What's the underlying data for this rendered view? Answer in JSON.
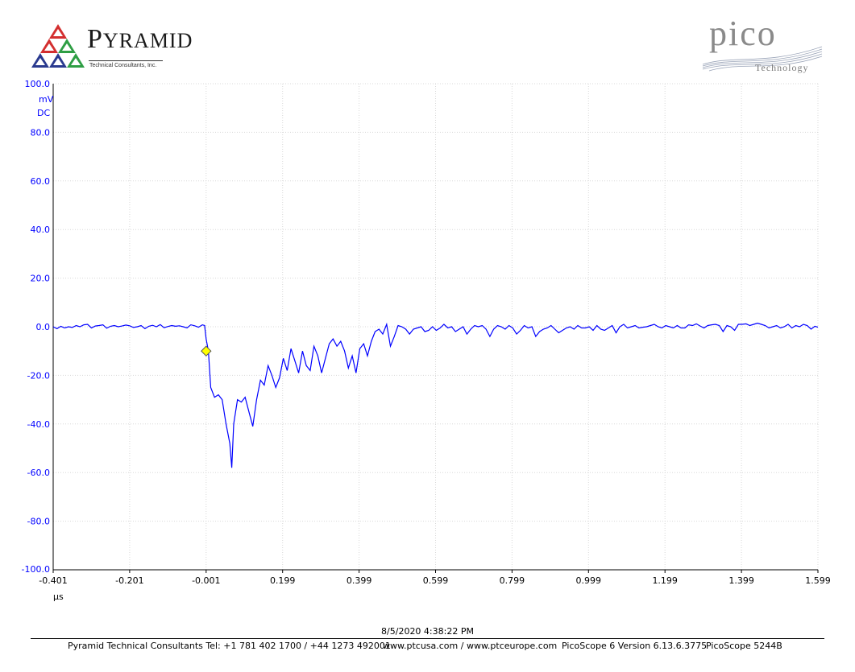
{
  "branding": {
    "left_logo": {
      "initial": "P",
      "rest": "YRAMID",
      "subtitle": "Technical Consultants, Inc."
    },
    "right_logo": {
      "word": "pico",
      "sub": "Technology"
    }
  },
  "colors": {
    "trace": "#0000ff",
    "axis_text": "#0000ff",
    "grid": "#d8d8d8",
    "trigger": "#ffff00"
  },
  "chart_data": {
    "type": "line",
    "title": "",
    "xlabel": "µs",
    "ylabel_units": [
      "mV",
      "DC"
    ],
    "xlim": [
      -0.401,
      1.599
    ],
    "ylim": [
      -100.0,
      100.0
    ],
    "grid": true,
    "y_ticks": [
      "100.0",
      "80.0",
      "60.0",
      "40.0",
      "20.0",
      "0.0",
      "-20.0",
      "-40.0",
      "-60.0",
      "-80.0",
      "-100.0"
    ],
    "y_tick_values": [
      100,
      80,
      60,
      40,
      20,
      0,
      -20,
      -40,
      -60,
      -80,
      -100
    ],
    "x_ticks": [
      "-0.401",
      "-0.201",
      "-0.001",
      "0.199",
      "0.399",
      "0.599",
      "0.799",
      "0.999",
      "1.199",
      "1.399",
      "1.599"
    ],
    "x_tick_values": [
      -0.401,
      -0.201,
      -0.001,
      0.199,
      0.399,
      0.599,
      0.799,
      0.999,
      1.199,
      1.399,
      1.599
    ],
    "trigger_marker": {
      "x": -0.001,
      "y": -10.0
    },
    "series": [
      {
        "x": [
          -0.401,
          -0.391,
          -0.381,
          -0.371,
          -0.361,
          -0.351,
          -0.341,
          -0.331,
          -0.321,
          -0.311,
          -0.301,
          -0.291,
          -0.281,
          -0.271,
          -0.261,
          -0.251,
          -0.241,
          -0.231,
          -0.221,
          -0.211,
          -0.201,
          -0.191,
          -0.181,
          -0.171,
          -0.161,
          -0.151,
          -0.141,
          -0.131,
          -0.121,
          -0.111,
          -0.101,
          -0.091,
          -0.081,
          -0.071,
          -0.061,
          -0.051,
          -0.041,
          -0.031,
          -0.021,
          -0.011,
          -0.005,
          -0.001,
          0.005,
          0.011,
          0.021,
          0.031,
          0.041,
          0.051,
          0.061,
          0.066,
          0.071,
          0.081,
          0.091,
          0.101,
          0.111,
          0.121,
          0.131,
          0.141,
          0.151,
          0.161,
          0.171,
          0.181,
          0.191,
          0.201,
          0.211,
          0.221,
          0.231,
          0.241,
          0.251,
          0.261,
          0.271,
          0.281,
          0.291,
          0.301,
          0.311,
          0.321,
          0.331,
          0.341,
          0.351,
          0.361,
          0.371,
          0.381,
          0.391,
          0.401,
          0.411,
          0.421,
          0.431,
          0.441,
          0.451,
          0.461,
          0.471,
          0.481,
          0.491,
          0.501,
          0.511,
          0.521,
          0.531,
          0.541,
          0.551,
          0.561,
          0.571,
          0.581,
          0.591,
          0.601,
          0.611,
          0.621,
          0.631,
          0.641,
          0.651,
          0.661,
          0.671,
          0.681,
          0.691,
          0.701,
          0.711,
          0.721,
          0.731,
          0.741,
          0.751,
          0.761,
          0.771,
          0.781,
          0.791,
          0.801,
          0.811,
          0.821,
          0.831,
          0.841,
          0.851,
          0.861,
          0.871,
          0.881,
          0.891,
          0.901,
          0.911,
          0.921,
          0.931,
          0.941,
          0.951,
          0.961,
          0.971,
          0.981,
          0.991,
          1.001,
          1.011,
          1.021,
          1.031,
          1.041,
          1.051,
          1.061,
          1.071,
          1.081,
          1.091,
          1.101,
          1.111,
          1.121,
          1.131,
          1.141,
          1.151,
          1.161,
          1.171,
          1.181,
          1.191,
          1.201,
          1.211,
          1.221,
          1.231,
          1.241,
          1.251,
          1.261,
          1.271,
          1.281,
          1.291,
          1.301,
          1.311,
          1.321,
          1.331,
          1.341,
          1.351,
          1.361,
          1.371,
          1.381,
          1.391,
          1.401,
          1.411,
          1.421,
          1.431,
          1.441,
          1.451,
          1.461,
          1.471,
          1.481,
          1.491,
          1.501,
          1.511,
          1.521,
          1.531,
          1.541,
          1.551,
          1.561,
          1.571,
          1.581,
          1.591,
          1.599
        ],
        "y": [
          0.0,
          -0.8,
          0.2,
          -0.5,
          0.0,
          -0.3,
          0.5,
          0.0,
          0.8,
          1.0,
          -0.5,
          0.3,
          0.5,
          0.8,
          -0.6,
          0.2,
          0.5,
          0.0,
          0.3,
          0.7,
          0.4,
          -0.3,
          0.0,
          0.5,
          -0.8,
          0.2,
          0.6,
          0.0,
          0.9,
          -0.4,
          0.1,
          0.5,
          0.2,
          0.4,
          0.0,
          -0.5,
          0.8,
          0.4,
          -0.2,
          0.8,
          0.5,
          -5.0,
          -10.0,
          -25.0,
          -29.0,
          -28.0,
          -30.0,
          -40.0,
          -48.0,
          -58.0,
          -40.0,
          -30.0,
          -31.0,
          -29.0,
          -35.0,
          -41.0,
          -30.0,
          -22.0,
          -24.0,
          -16.0,
          -20.0,
          -25.0,
          -21.0,
          -13.0,
          -18.0,
          -9.0,
          -14.0,
          -19.0,
          -10.0,
          -16.0,
          -18.0,
          -8.0,
          -12.0,
          -19.0,
          -13.0,
          -7.0,
          -5.0,
          -8.0,
          -6.0,
          -10.0,
          -17.0,
          -12.0,
          -19.0,
          -9.0,
          -7.0,
          -12.0,
          -6.0,
          -2.0,
          -1.0,
          -3.0,
          1.0,
          -8.0,
          -4.0,
          0.5,
          0.0,
          -1.0,
          -3.0,
          -1.0,
          -0.5,
          0.0,
          -2.0,
          -1.5,
          0.0,
          -1.5,
          -0.5,
          1.0,
          -0.5,
          0.0,
          -2.0,
          -1.0,
          0.0,
          -3.0,
          -1.0,
          0.5,
          0.0,
          0.5,
          -1.0,
          -4.0,
          -1.0,
          0.5,
          0.0,
          -1.0,
          0.5,
          -0.5,
          -3.0,
          -1.5,
          0.5,
          -0.5,
          0.0,
          -4.0,
          -2.0,
          -1.0,
          -0.5,
          0.5,
          -1.0,
          -2.5,
          -1.5,
          -0.5,
          0.0,
          -1.0,
          0.5,
          -0.5,
          -0.5,
          0.0,
          -1.5,
          0.5,
          -1.0,
          -1.5,
          -0.5,
          0.5,
          -2.5,
          0.0,
          1.0,
          -0.5,
          0.0,
          0.5,
          -0.5,
          -0.2,
          0.0,
          0.5,
          1.0,
          0.0,
          -0.5,
          0.5,
          0.0,
          -0.5,
          0.5,
          -0.5,
          -0.5,
          0.8,
          0.5,
          1.2,
          0.3,
          -0.5,
          0.5,
          0.8,
          1.0,
          0.5,
          -2.0,
          0.5,
          0.0,
          -1.5,
          1.0,
          1.0,
          1.2,
          0.5,
          1.0,
          1.5,
          1.0,
          0.5,
          -0.5,
          0.0,
          0.5,
          -0.5,
          0.0,
          1.0,
          -0.5,
          0.5,
          0.0,
          1.0,
          0.5,
          -1.0,
          0.2,
          -0.2
        ]
      }
    ]
  },
  "footer": {
    "timestamp": "8/5/2020 4:38:22 PM",
    "company": "Pyramid Technical Consultants Tel: +1 781 402 1700 / +44 1273 492001",
    "web": "www.ptcusa.com / www.ptceurope.com",
    "version": "PicoScope 6 Version 6.13.6.3775",
    "model": "PicoScope 5244B"
  }
}
